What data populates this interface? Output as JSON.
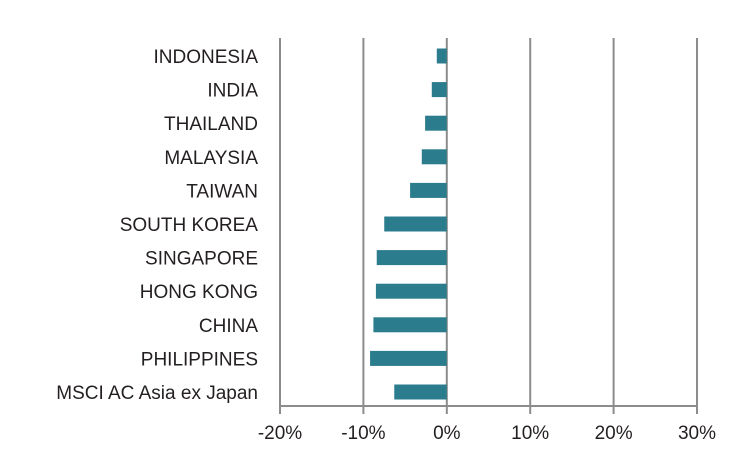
{
  "chart_data": {
    "type": "bar",
    "orientation": "horizontal",
    "categories": [
      "INDONESIA",
      "INDIA",
      "THAILAND",
      "MALAYSIA",
      "TAIWAN",
      "SOUTH KOREA",
      "SINGAPORE",
      "HONG KONG",
      "CHINA",
      "PHILIPPINES",
      "MSCI AC Asia ex Japan"
    ],
    "values": [
      -1.2,
      -1.8,
      -2.6,
      -3.0,
      -4.4,
      -7.5,
      -8.4,
      -8.5,
      -8.8,
      -9.2,
      -6.3
    ],
    "xlim": [
      -20,
      30
    ],
    "xticks": [
      -20,
      -10,
      0,
      10,
      20,
      30
    ],
    "xtick_labels": [
      "-20%",
      "-10%",
      "0%",
      "10%",
      "20%",
      "30%"
    ],
    "grid": "vertical",
    "bar_color": "#2b7c8c",
    "grid_color": "#8c8c8c",
    "title": "",
    "xlabel": "",
    "ylabel": ""
  }
}
